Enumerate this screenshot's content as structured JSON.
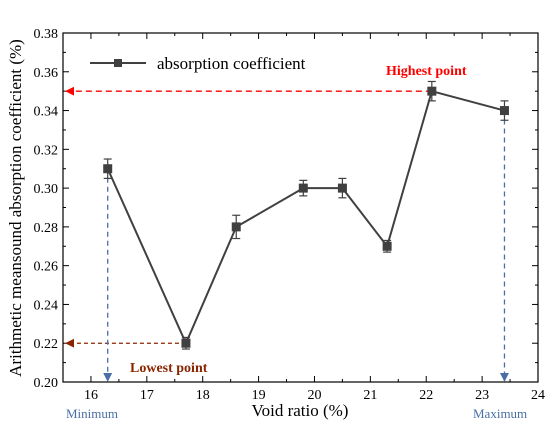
{
  "chart_data": {
    "type": "line",
    "xlabel": "Void ratio (%)",
    "ylabel": "Arithmetic meansound absorption coefficient (%)",
    "xlim": [
      15.5,
      24
    ],
    "ylim": [
      0.2,
      0.38
    ],
    "xticks": [
      "16",
      "17",
      "18",
      "19",
      "20",
      "21",
      "22",
      "23",
      "24"
    ],
    "yticks": [
      "0.20",
      "0.22",
      "0.24",
      "0.26",
      "0.28",
      "0.30",
      "0.32",
      "0.34",
      "0.36",
      "0.38"
    ],
    "series": [
      {
        "name": "absorption coefficient",
        "x": [
          16.3,
          17.7,
          18.6,
          19.8,
          20.5,
          21.3,
          22.1,
          23.4
        ],
        "values": [
          0.31,
          0.22,
          0.28,
          0.3,
          0.3,
          0.27,
          0.35,
          0.34
        ],
        "errors": [
          0.005,
          0.003,
          0.006,
          0.004,
          0.005,
          0.003,
          0.005,
          0.005
        ]
      }
    ],
    "legend": "top-left",
    "grid": false,
    "annotations": {
      "highest": {
        "label": "Highest point",
        "x": 22.1,
        "y": 0.35,
        "color": "#ff0000"
      },
      "lowest": {
        "label": "Lowest point",
        "x": 17.7,
        "y": 0.22,
        "color": "#8b2500"
      },
      "minimum": {
        "label": "Minimum",
        "x": 16.3,
        "color": "#4a6fa5"
      },
      "maximum": {
        "label": "Maximum",
        "x": 23.4,
        "color": "#4a6fa5"
      }
    },
    "colors": {
      "series": "#404040",
      "axis": "#000000"
    }
  }
}
